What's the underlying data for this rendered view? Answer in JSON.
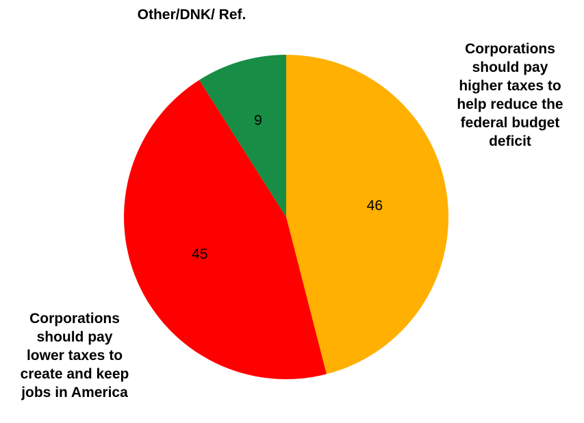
{
  "chart_data": {
    "type": "pie",
    "slices": [
      {
        "label": "Corporations should pay higher taxes to help reduce the federal budget deficit",
        "display_label": "Corporations\nshould pay\nhigher taxes to\nhelp reduce the\nfederal budget\ndeficit",
        "value": 46,
        "color": "#FFB000"
      },
      {
        "label": "Corporations should pay lower taxes to create and keep jobs in America",
        "display_label": "Corporations\nshould pay\nlower taxes to\ncreate and keep\njobs in America",
        "value": 45,
        "color": "#FF0000"
      },
      {
        "label": "Other/DNK/ Ref.",
        "display_label": "Other/DNK/ Ref.",
        "value": 9,
        "color": "#178D45"
      }
    ],
    "start": "top",
    "direction": "clockwise",
    "legend": "none"
  }
}
